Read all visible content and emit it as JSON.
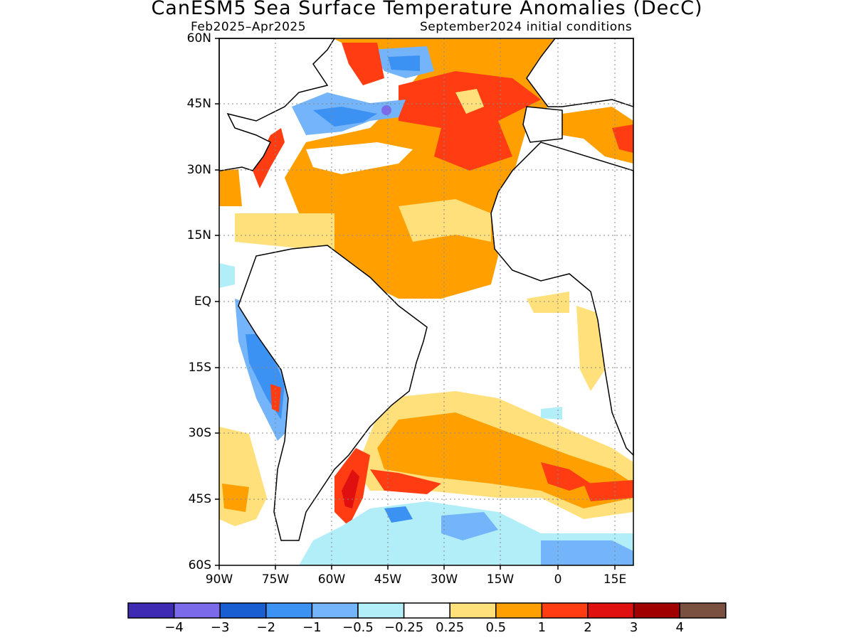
{
  "title": "CanESM5 Sea Surface Temperature Anomalies (DecC)",
  "period": "Feb2025–Apr2025",
  "init": "September2024 initial conditions",
  "lat_ticks": [
    "60N",
    "45N",
    "30N",
    "15N",
    "EQ",
    "15S",
    "30S",
    "45S",
    "60S"
  ],
  "lon_ticks": [
    "90W",
    "75W",
    "60W",
    "45W",
    "30W",
    "15W",
    "0",
    "15E"
  ],
  "colorbar": {
    "colors": [
      "#3f2ab4",
      "#7b6aea",
      "#1a5fd2",
      "#3c92f2",
      "#74b4fa",
      "#b2eef8",
      "#ffffff",
      "#ffe07a",
      "#ffa000",
      "#ff3c12",
      "#e01010",
      "#a00000",
      "#7a5040"
    ],
    "labels": [
      "−4",
      "−3",
      "−2",
      "−1",
      "−0.5",
      "−0.25",
      "0.25",
      "0.5",
      "1",
      "2",
      "3",
      "4"
    ]
  },
  "map_colors": {
    "orange": "#ffa000",
    "yellow": "#ffe07a",
    "red": "#ff3c12",
    "dark_red": "#e01010",
    "light_blue": "#b2eef8",
    "mid_blue": "#74b4fa",
    "blue": "#3c92f2",
    "dark_blue": "#1a5fd2",
    "purple": "#7b6aea"
  }
}
